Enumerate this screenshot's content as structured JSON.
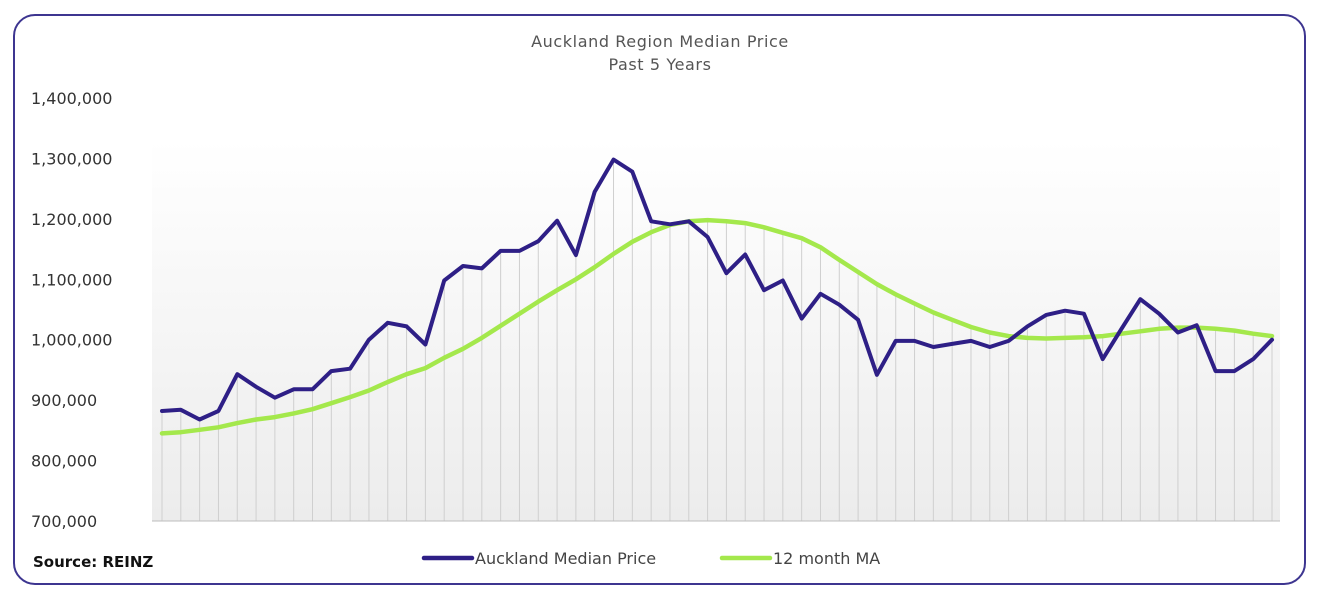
{
  "source_note": "Source: REINZ",
  "colors": {
    "frame": "#3d3590",
    "median": "#2e1f86",
    "ma": "#a4e84c",
    "droplines": "#cfcfcf"
  },
  "chart_data": {
    "type": "line",
    "title": "Auckland Region Median Price",
    "subtitle": "Past 5 Years",
    "xlabel": "",
    "ylabel": "",
    "ylim": [
      700000,
      1400000
    ],
    "yticks": [
      700000,
      800000,
      900000,
      1000000,
      1100000,
      1200000,
      1300000,
      1400000
    ],
    "ytick_labels": [
      "700,000",
      "800,000",
      "900,000",
      "1,000,000",
      "1,100,000",
      "1,200,000",
      "1,300,000",
      "1,400,000"
    ],
    "grid": false,
    "drop_lines": true,
    "legend_position": "bottom",
    "series": [
      {
        "name": "Auckland Median Price",
        "color": "#2e1f86",
        "values": [
          882000,
          884000,
          868000,
          882000,
          943000,
          922000,
          904000,
          918000,
          918000,
          948000,
          952000,
          1000000,
          1028000,
          1022000,
          992000,
          1098000,
          1122000,
          1118000,
          1147000,
          1147000,
          1163000,
          1197000,
          1140000,
          1245000,
          1298000,
          1278000,
          1196000,
          1191000,
          1196000,
          1170000,
          1110000,
          1141000,
          1082000,
          1098000,
          1035000,
          1076000,
          1058000,
          1033000,
          942000,
          998000,
          998000,
          988000,
          993000,
          998000,
          988000,
          998000,
          1022000,
          1041000,
          1048000,
          1043000,
          968000,
          1018000,
          1067000,
          1043000,
          1012000,
          1024000,
          948000,
          948000,
          968000,
          1000000
        ]
      },
      {
        "name": "12 month MA",
        "color": "#a4e84c",
        "values": [
          845000,
          847000,
          851000,
          855000,
          862000,
          868000,
          872000,
          878000,
          885000,
          895000,
          905000,
          916000,
          930000,
          943000,
          953000,
          970000,
          985000,
          1003000,
          1023000,
          1043000,
          1063000,
          1082000,
          1100000,
          1120000,
          1142000,
          1162000,
          1178000,
          1190000,
          1196000,
          1198000,
          1196000,
          1193000,
          1186000,
          1177000,
          1168000,
          1153000,
          1132000,
          1112000,
          1092000,
          1075000,
          1060000,
          1045000,
          1033000,
          1021000,
          1012000,
          1006000,
          1003000,
          1002000,
          1003000,
          1004000,
          1006000,
          1010000,
          1014000,
          1018000,
          1020000,
          1020000,
          1018000,
          1015000,
          1010000,
          1006000
        ]
      }
    ]
  }
}
